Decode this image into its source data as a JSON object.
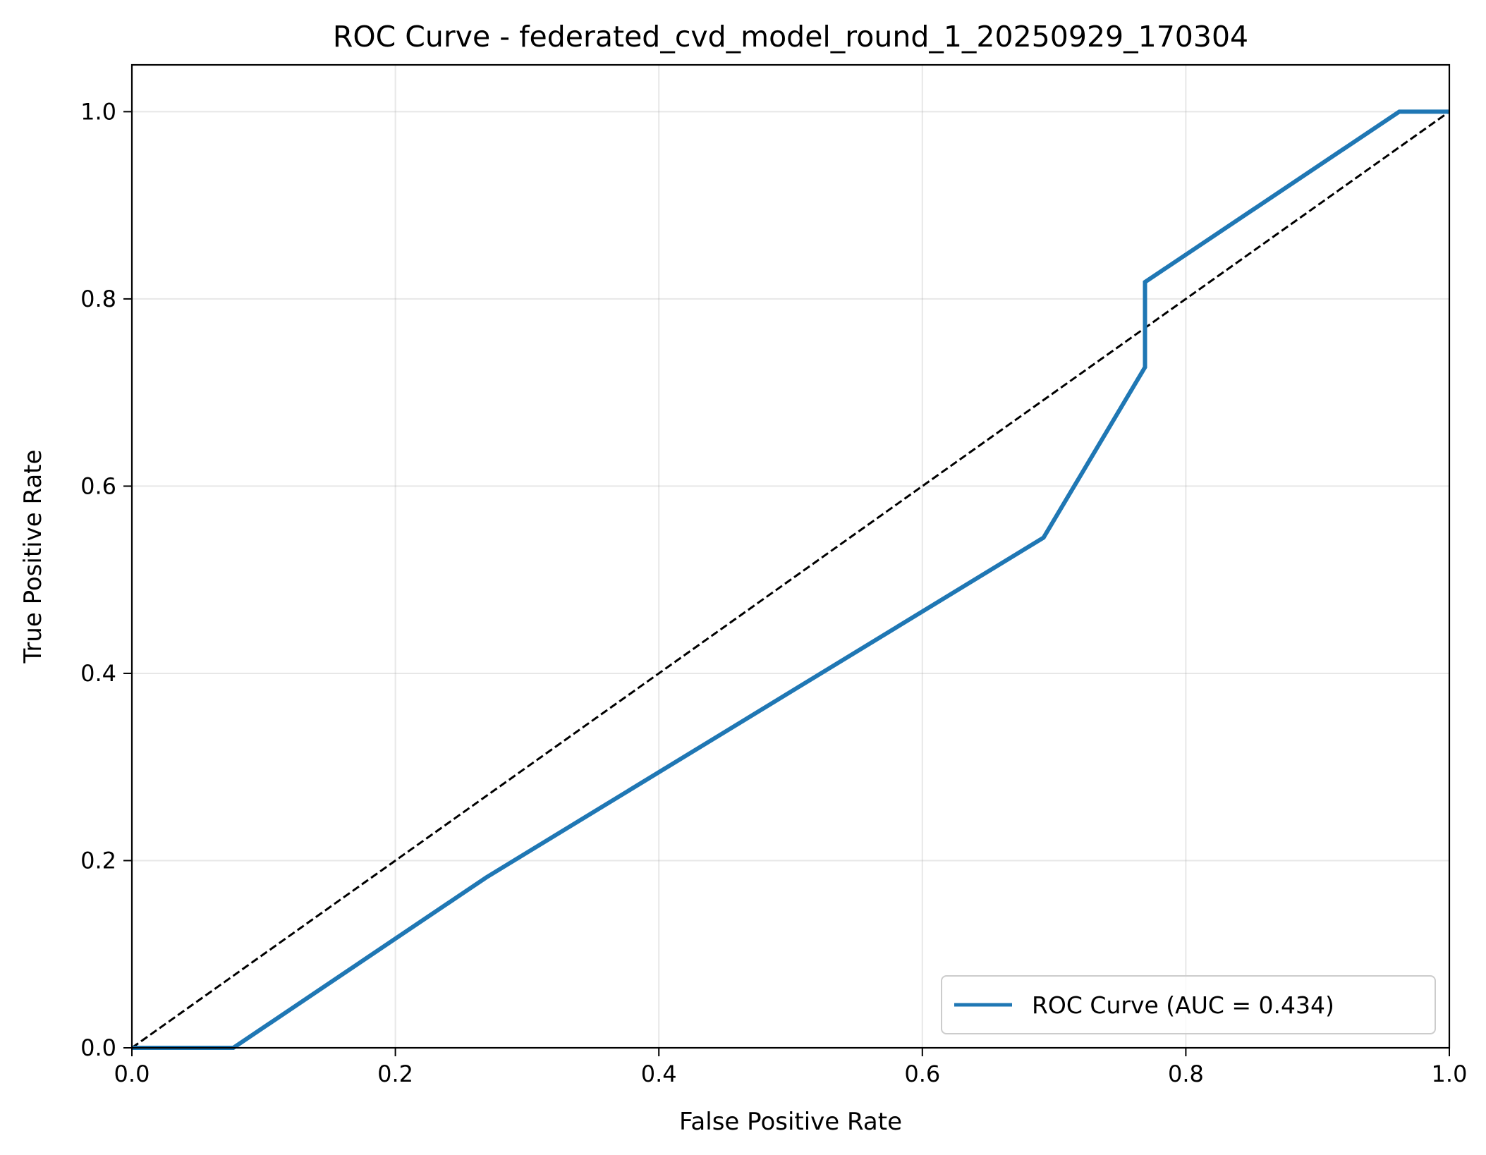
{
  "chart_data": {
    "type": "line",
    "title": "ROC Curve - federated_cvd_model_round_1_20250929_170304",
    "xlabel": "False Positive Rate",
    "ylabel": "True Positive Rate",
    "xlim": [
      0.0,
      1.0
    ],
    "ylim": [
      0.0,
      1.05
    ],
    "xticks": [
      "0.0",
      "0.2",
      "0.4",
      "0.6",
      "0.8",
      "1.0"
    ],
    "yticks": [
      "0.0",
      "0.2",
      "0.4",
      "0.6",
      "0.8",
      "1.0"
    ],
    "grid": true,
    "legend_position": "lower-right",
    "series": [
      {
        "name": "ROC Curve (AUC = 0.434)",
        "color": "#1f77b4",
        "x": [
          0.0,
          0.077,
          0.269,
          0.692,
          0.769,
          0.769,
          0.962,
          1.0
        ],
        "y": [
          0.0,
          0.0,
          0.182,
          0.545,
          0.727,
          0.818,
          1.0,
          1.0
        ]
      },
      {
        "color": "#000000",
        "style": "dashed",
        "x": [
          0.0,
          1.0
        ],
        "y": [
          0.0,
          1.0
        ]
      }
    ]
  }
}
